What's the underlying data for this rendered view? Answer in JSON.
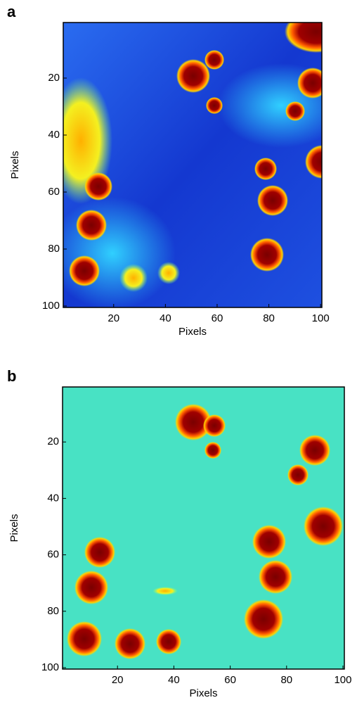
{
  "chart_data": [
    {
      "type": "heatmap",
      "title": "a",
      "xlabel": "Pixels",
      "ylabel": "Pixels",
      "xlim": [
        0.5,
        100.5
      ],
      "ylim": [
        0.5,
        100.5
      ],
      "xticks": [
        20,
        40,
        60,
        80,
        100
      ],
      "yticks": [
        20,
        40,
        60,
        80,
        100
      ],
      "y_reversed": true
    },
    {
      "type": "heatmap",
      "title": "b",
      "xlabel": "Pixels",
      "ylabel": "Pixels",
      "xlim": [
        0.5,
        100.5
      ],
      "ylim": [
        0.5,
        100.5
      ],
      "xticks": [
        20,
        40,
        60,
        80,
        100
      ],
      "yticks": [
        20,
        40,
        60,
        80,
        100
      ],
      "y_reversed": true
    }
  ]
}
